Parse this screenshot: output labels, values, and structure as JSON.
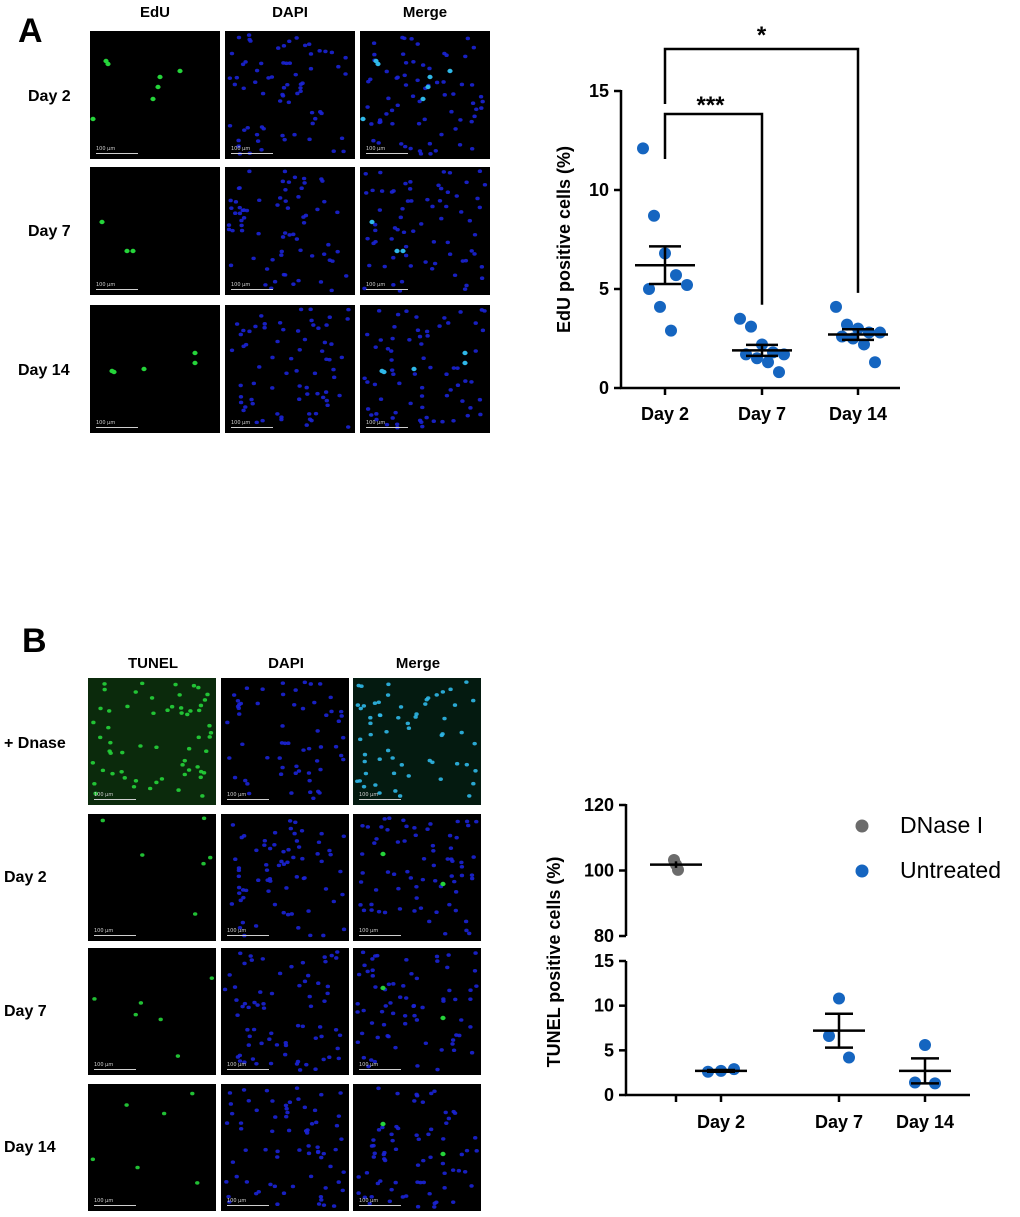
{
  "panel_a": {
    "letter": "A",
    "columns": [
      "EdU",
      "DAPI",
      "Merge"
    ],
    "rows": [
      "Day 2",
      "Day 7",
      "Day 14"
    ],
    "scale_bar": "100 µm"
  },
  "panel_b": {
    "letter": "B",
    "columns": [
      "TUNEL",
      "DAPI",
      "Merge"
    ],
    "rows": [
      "+ Dnase",
      "Day 2",
      "Day 7",
      "Day 14"
    ],
    "scale_bar": "100 µm"
  },
  "colors": {
    "untreated": "#1565c0",
    "dnase": "#6b6b6b",
    "edu_green": "#25d43a",
    "dapi_blue": "#1b23d6",
    "merge_cyan": "#2fb8e8"
  },
  "chart_data": [
    {
      "type": "scatter",
      "title": "",
      "xlabel": "",
      "ylabel": "EdU positive cells (%)",
      "categories": [
        "Day 2",
        "Day 7",
        "Day 14"
      ],
      "ylim": [
        0,
        15
      ],
      "yticks": [
        0,
        5,
        10,
        15
      ],
      "series": [
        {
          "values": [
            [
              12.1,
              8.7,
              6.8,
              5.7,
              5.2,
              5.0,
              4.1,
              2.9
            ],
            [
              3.5,
              3.1,
              2.2,
              1.8,
              1.7,
              1.7,
              1.5,
              1.3,
              0.8
            ],
            [
              4.1,
              3.2,
              3.0,
              2.8,
              2.8,
              2.6,
              2.5,
              2.2,
              1.3
            ]
          ],
          "mean": [
            6.2,
            1.9,
            2.7
          ],
          "sem": [
            0.95,
            0.28,
            0.27
          ]
        }
      ],
      "annotations": [
        {
          "from": "Day 2",
          "to": "Day 7",
          "label": "***"
        },
        {
          "from": "Day 2",
          "to": "Day 14",
          "label": "*"
        }
      ]
    },
    {
      "type": "scatter",
      "title": "",
      "xlabel": "",
      "ylabel": "TUNEL positive cells (%)",
      "categories": [
        "Day 2",
        "Day 7",
        "Day 14"
      ],
      "axis_break": {
        "lower": [
          0,
          15
        ],
        "upper": [
          80,
          120
        ]
      },
      "yticks_lower": [
        0,
        5,
        10,
        15
      ],
      "yticks_upper": [
        80,
        100,
        120
      ],
      "legend": "top-right",
      "series": [
        {
          "name": "DNase I",
          "values": [
            103.2,
            101.8,
            100.2
          ],
          "mean": 101.8,
          "sem": 1.0
        },
        {
          "name": "Untreated",
          "values": [
            [
              2.6,
              2.7,
              2.9
            ],
            [
              10.8,
              6.6,
              4.2
            ],
            [
              5.6,
              1.4,
              1.3
            ]
          ],
          "mean": [
            2.7,
            7.2,
            2.7
          ],
          "sem": [
            0.1,
            1.9,
            1.4
          ]
        }
      ]
    }
  ]
}
